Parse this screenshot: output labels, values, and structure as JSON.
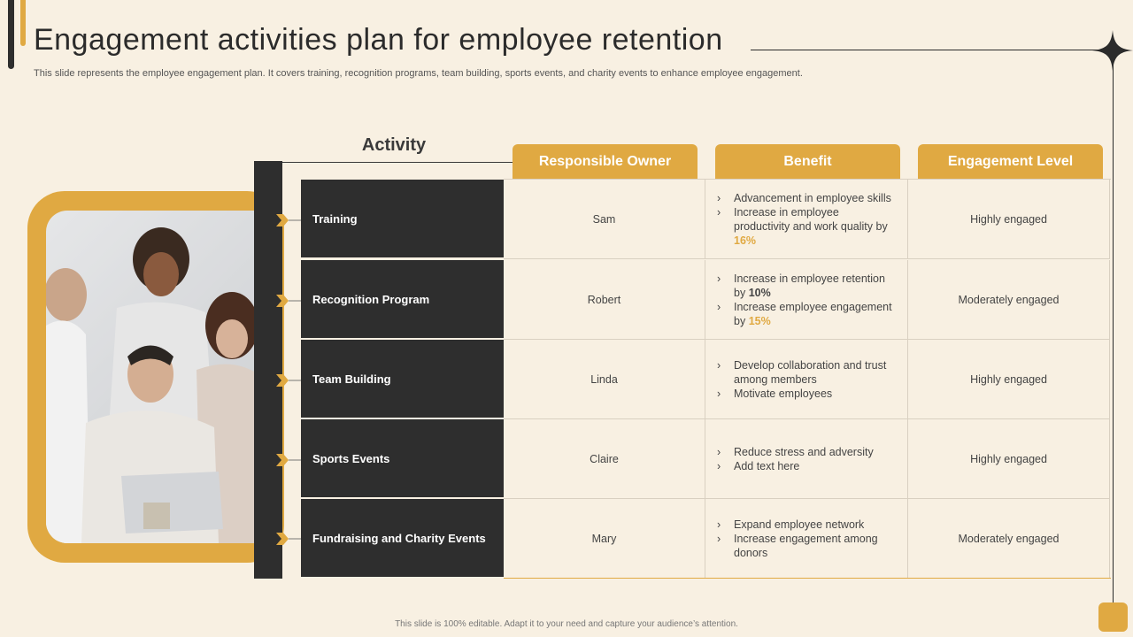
{
  "title": "Engagement activities plan for employee retention",
  "subtitle": "This slide represents the employee engagement plan. It covers training, recognition programs, team building, sports events, and charity events to  enhance employee engagement.",
  "footer": "This slide is 100% editable.  Adapt it to your need and capture your audience’s attention.",
  "colors": {
    "accent": "#e0a942",
    "dark": "#2e2e2e",
    "background": "#f8f0e2"
  },
  "table": {
    "activity_header": "Activity",
    "headers": [
      "Responsible Owner",
      "Benefit",
      "Engagement Level"
    ],
    "rows": [
      {
        "activity": "Training",
        "owner": "Sam",
        "benefits": [
          {
            "parts": [
              "Advancement in employee skills"
            ]
          },
          {
            "parts": [
              "Increase in employee productivity and work quality by ",
              "16%"
            ]
          }
        ],
        "level": "Highly engaged"
      },
      {
        "activity": "Recognition Program",
        "owner": "Robert",
        "benefits": [
          {
            "parts": [
              "Increase in employee retention by ",
              "10%"
            ]
          },
          {
            "parts": [
              "Increase employee engagement  by ",
              "15%"
            ]
          }
        ],
        "level": "Moderately engaged"
      },
      {
        "activity": "Team Building",
        "owner": "Linda",
        "benefits": [
          {
            "parts": [
              "Develop collaboration and trust among members"
            ]
          },
          {
            "parts": [
              "Motivate employees"
            ]
          }
        ],
        "level": "Highly engaged"
      },
      {
        "activity": "Sports Events",
        "owner": "Claire",
        "benefits": [
          {
            "parts": [
              "Reduce stress and adversity"
            ]
          },
          {
            "parts": [
              "Add text here"
            ]
          }
        ],
        "level": "Highly engaged"
      },
      {
        "activity": "Fundraising and Charity Events",
        "owner": "Mary",
        "benefits": [
          {
            "parts": [
              "Expand employee network"
            ]
          },
          {
            "parts": [
              "Increase engagement among donors"
            ]
          }
        ],
        "level": "Moderately engaged"
      }
    ]
  }
}
